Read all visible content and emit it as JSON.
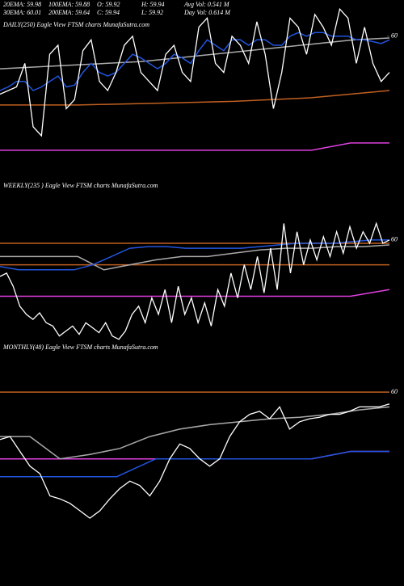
{
  "header": {
    "rows": [
      [
        "20EMA: 59.98",
        "100EMA: 59.88",
        "O: 59.92",
        "H: 59.94",
        "Avg Vol: 0.541  M"
      ],
      [
        "30EMA: 60.01",
        "200EMA: 59.64",
        "C: 59.94",
        "L: 59.92",
        "Day Vol: 0.614  M"
      ]
    ]
  },
  "chart_data": [
    {
      "type": "line",
      "label": "DAILY(250) Eagle   View   FTSM charts MunafaSutra.com",
      "ylim": [
        59.24,
        60.2
      ],
      "yticks": [
        60
      ],
      "series": [
        {
          "color": "#c06020",
          "values": [
            59.62,
            59.62,
            59.63,
            59.64,
            59.66,
            59.7
          ]
        },
        {
          "color": "#e040e0",
          "values": [
            59.37,
            59.37,
            59.37,
            59.37,
            59.37,
            59.37,
            59.37,
            59.37,
            59.37,
            59.41,
            59.41
          ]
        },
        {
          "color": "#aaaaaa",
          "values": [
            59.82,
            59.83,
            59.84,
            59.85,
            59.86,
            59.88,
            59.9,
            59.92,
            59.94,
            59.96,
            59.98,
            59.99
          ]
        },
        {
          "color": "#2255dd",
          "values": [
            59.7,
            59.72,
            59.75,
            59.75,
            59.7,
            59.72,
            59.75,
            59.78,
            59.72,
            59.73,
            59.8,
            59.85,
            59.8,
            59.78,
            59.8,
            59.85,
            59.9,
            59.88,
            59.85,
            59.82,
            59.85,
            59.9,
            59.88,
            59.85,
            59.92,
            59.98,
            59.95,
            59.92,
            59.98,
            59.98,
            59.95,
            59.98,
            59.98,
            59.95,
            59.95,
            60.0,
            60.02,
            60.0,
            60.02,
            60.02,
            60.0,
            60.0,
            60.0,
            59.98,
            59.98,
            59.97,
            59.96,
            59.98
          ]
        },
        {
          "color": "#ffffff",
          "values": [
            59.68,
            59.7,
            59.72,
            59.85,
            59.5,
            59.45,
            59.9,
            59.95,
            59.6,
            59.65,
            59.92,
            59.98,
            59.75,
            59.7,
            59.8,
            59.95,
            60.0,
            59.8,
            59.75,
            59.7,
            59.9,
            59.95,
            59.8,
            59.75,
            60.05,
            60.1,
            59.85,
            59.8,
            60.0,
            59.95,
            59.85,
            60.08,
            59.9,
            59.6,
            59.8,
            60.1,
            60.05,
            59.9,
            60.12,
            60.05,
            59.95,
            60.15,
            60.1,
            59.85,
            60.05,
            59.85,
            59.75,
            59.8
          ]
        }
      ]
    },
    {
      "type": "line",
      "label": "WEEKLY(235                    ) Eagle   View   FTSM charts MunafaSutra.com",
      "ylim": [
        59.35,
        60.4
      ],
      "yticks": [
        60
      ],
      "series": [
        {
          "color": "#c06020",
          "values": [
            59.98,
            59.98
          ]
        },
        {
          "color": "#c06020",
          "values": [
            59.85,
            59.85
          ]
        },
        {
          "color": "#e040e0",
          "values": [
            59.66,
            59.66,
            59.66,
            59.66,
            59.66,
            59.66,
            59.66,
            59.66,
            59.66,
            59.66,
            59.7
          ]
        },
        {
          "color": "#aaaaaa",
          "values": [
            59.9,
            59.9,
            59.9,
            59.9,
            59.82,
            59.85,
            59.88,
            59.9,
            59.9,
            59.92,
            59.94,
            59.95,
            59.95,
            59.96,
            59.96,
            59.97
          ]
        },
        {
          "color": "#2255dd",
          "values": [
            59.84,
            59.82,
            59.82,
            59.82,
            59.82,
            59.85,
            59.9,
            59.95,
            59.96,
            59.96,
            59.95,
            59.95,
            59.95,
            59.95,
            59.96,
            59.97,
            59.98,
            59.98,
            59.98,
            59.99,
            60.0,
            60.0
          ]
        },
        {
          "color": "#ffffff",
          "values": [
            59.78,
            59.8,
            59.72,
            59.6,
            59.55,
            59.52,
            59.56,
            59.5,
            59.48,
            59.42,
            59.45,
            59.48,
            59.43,
            59.5,
            59.47,
            59.44,
            59.5,
            59.42,
            59.4,
            59.45,
            59.55,
            59.6,
            59.5,
            59.65,
            59.55,
            59.7,
            59.5,
            59.72,
            59.55,
            59.65,
            59.5,
            59.62,
            59.48,
            59.7,
            59.6,
            59.8,
            59.65,
            59.85,
            59.7,
            59.9,
            59.68,
            59.95,
            59.7,
            60.1,
            59.8,
            60.05,
            59.85,
            60.0,
            59.88,
            60.02,
            59.9,
            60.05,
            59.92,
            60.08,
            59.95,
            60.05,
            59.98,
            60.1,
            59.98,
            60.0
          ]
        }
      ]
    },
    {
      "type": "line",
      "label": "MONTHLY(48) Eagle   View   FTSM charts MunafaSutra.com",
      "ylim": [
        58.72,
        60.3
      ],
      "yticks": [
        60
      ],
      "series": [
        {
          "color": "#c06020",
          "values": [
            60.0,
            60.0
          ]
        },
        {
          "color": "#e040e0",
          "values": [
            59.55,
            59.55,
            59.55,
            59.55,
            59.55,
            59.55,
            59.55,
            59.55,
            59.55,
            59.6,
            59.6
          ]
        },
        {
          "color": "#aaaaaa",
          "values": [
            59.7,
            59.7,
            59.55,
            59.58,
            59.62,
            59.7,
            59.75,
            59.78,
            59.8,
            59.82,
            59.83,
            59.85,
            59.88,
            59.9
          ]
        },
        {
          "color": "#2255dd",
          "values": [
            59.43,
            59.43,
            59.43,
            59.43,
            59.55,
            59.55,
            59.55,
            59.55,
            59.55,
            59.6,
            59.6
          ]
        },
        {
          "color": "#ffffff",
          "values": [
            59.68,
            59.7,
            59.6,
            59.5,
            59.45,
            59.3,
            59.28,
            59.25,
            59.2,
            59.15,
            59.2,
            59.28,
            59.35,
            59.4,
            59.37,
            59.3,
            59.4,
            59.55,
            59.65,
            59.62,
            59.55,
            59.5,
            59.55,
            59.7,
            59.8,
            59.85,
            59.87,
            59.82,
            59.9,
            59.75,
            59.8,
            59.82,
            59.83,
            59.85,
            59.85,
            59.87,
            59.9,
            59.9,
            59.9,
            59.92
          ]
        }
      ]
    }
  ]
}
